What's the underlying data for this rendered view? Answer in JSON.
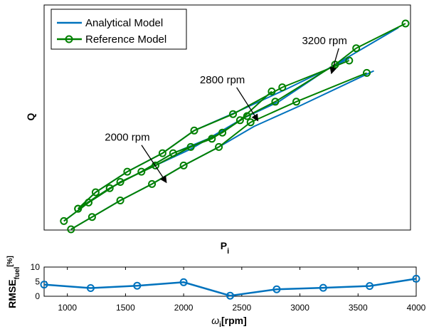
{
  "colors": {
    "analytical": "#0072BD",
    "reference": "#008000",
    "lower": "#0072BD"
  },
  "chart_data": [
    {
      "type": "line",
      "xlabel_main": "P",
      "xlabel_sub": "i",
      "ylabel": "Q",
      "xlim": [
        0,
        100
      ],
      "ylim": [
        0,
        100
      ],
      "ticks_visible": false,
      "legend": {
        "placement": "top-left",
        "entries": [
          "Analytical Model",
          "Reference Model"
        ]
      },
      "annotations": [
        {
          "text": "3200 rpm",
          "text_x": 77,
          "text_y": 90,
          "arrow_to_x": 79,
          "arrow_to_y": 76
        },
        {
          "text": "2800 rpm",
          "text_x": 48,
          "text_y": 71,
          "arrow_to_x": 58,
          "arrow_to_y": 53
        },
        {
          "text": "2000 rpm",
          "text_x": 21,
          "text_y": 43,
          "arrow_to_x": 32,
          "arrow_to_y": 23
        }
      ],
      "series": [
        {
          "name": "Analytical Model",
          "groups": [
            [
              [
                7,
                10
              ],
              [
                12,
                18
              ],
              [
                21,
                28
              ],
              [
                31,
                37
              ],
              [
                40,
                48
              ],
              [
                52,
                57
              ],
              [
                66,
                68
              ],
              [
                84,
                83
              ]
            ],
            [
              [
                5,
                0
              ],
              [
                11,
                6
              ],
              [
                19,
                14
              ],
              [
                28,
                22
              ],
              [
                37,
                31
              ],
              [
                47,
                40
              ],
              [
                57,
                50
              ],
              [
                70,
                60
              ],
              [
                91,
                77
              ]
            ],
            [
              [
                3,
                4
              ],
              [
                10,
                13
              ],
              [
                19,
                23
              ],
              [
                29,
                31
              ],
              [
                39,
                39
              ],
              [
                47,
                47
              ],
              [
                53,
                53
              ]
            ],
            [
              [
                7,
                10
              ],
              [
                16,
                20
              ],
              [
                25,
                28
              ],
              [
                34,
                37
              ],
              [
                44,
                44
              ],
              [
                54,
                54
              ],
              [
                64,
                62
              ],
              [
                78,
                78
              ],
              [
                98,
                98
              ]
            ]
          ]
        },
        {
          "name": "Reference Model",
          "groups": [
            [
              [
                7,
                10
              ],
              [
                12,
                18
              ],
              [
                21,
                28
              ],
              [
                31,
                37
              ],
              [
                40,
                48
              ],
              [
                51,
                56
              ],
              [
                65,
                69
              ],
              [
                84,
                82
              ]
            ],
            [
              [
                5,
                0
              ],
              [
                11,
                6
              ],
              [
                19,
                14
              ],
              [
                28,
                22
              ],
              [
                37,
                31
              ],
              [
                47,
                40
              ],
              [
                56,
                52
              ],
              [
                69,
                62
              ],
              [
                89,
                76
              ]
            ],
            [
              [
                3,
                4
              ],
              [
                10,
                13
              ],
              [
                19,
                23
              ],
              [
                29,
                31
              ],
              [
                39,
                40
              ],
              [
                48,
                47
              ],
              [
                53,
                53
              ],
              [
                62,
                67
              ]
            ],
            [
              [
                7,
                10
              ],
              [
                16,
                20
              ],
              [
                25,
                28
              ],
              [
                34,
                37
              ],
              [
                45,
                44
              ],
              [
                55,
                55
              ],
              [
                63,
                62
              ],
              [
                80,
                80
              ],
              [
                86,
                88
              ],
              [
                100,
                100
              ]
            ]
          ]
        }
      ]
    },
    {
      "type": "line",
      "xlabel": "ω",
      "xlabel_sub": "i",
      "xlabel_unit": "[rpm]",
      "ylabel_main": "RMSE",
      "ylabel_sub": "fuel",
      "ylabel_unit": "[%]",
      "xlim": [
        800,
        4000
      ],
      "ylim": [
        0,
        10
      ],
      "xticks": [
        1000,
        1500,
        2000,
        2500,
        3000,
        3500,
        4000
      ],
      "yticks": [
        0,
        5,
        10
      ],
      "x": [
        800,
        1200,
        1600,
        2000,
        2400,
        2800,
        3200,
        3600,
        4000
      ],
      "y": [
        4,
        2.8,
        3.6,
        4.8,
        0.2,
        2.4,
        2.9,
        3.5,
        6
      ]
    }
  ]
}
